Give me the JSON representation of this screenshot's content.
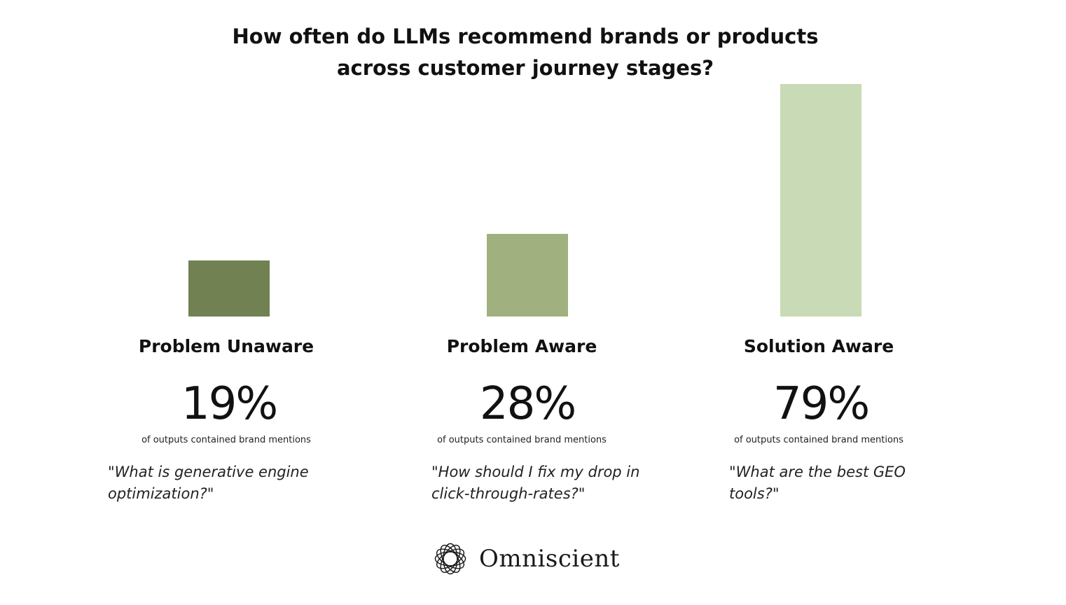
{
  "chart_data": {
    "type": "bar",
    "title": "How often do LLMs recommend brands or products across customer journey stages?",
    "title_lines": [
      "How often do LLMs recommend brands or products",
      "across customer journey stages?"
    ],
    "categories": [
      "Problem Unaware",
      "Problem Aware",
      "Solution Aware"
    ],
    "values": [
      19,
      28,
      79
    ],
    "value_labels": [
      "19%",
      "28%",
      "79%"
    ],
    "unit": "%",
    "ylim": [
      0,
      79
    ],
    "captions": [
      "of outputs contained brand mentions",
      "of outputs contained brand mentions",
      "of outputs contained brand mentions"
    ],
    "quotes": [
      "\"What is generative engine optimization?\"",
      "\"How should I fix my drop in click-through-rates?\"",
      "\"What are the best GEO tools?\""
    ],
    "colors": [
      "#718152",
      "#a0b07f",
      "#c8dab6"
    ],
    "grid": false,
    "legend": "none"
  },
  "brand": {
    "name": "Omniscient",
    "icon": "interwoven-rings-logo-icon"
  }
}
